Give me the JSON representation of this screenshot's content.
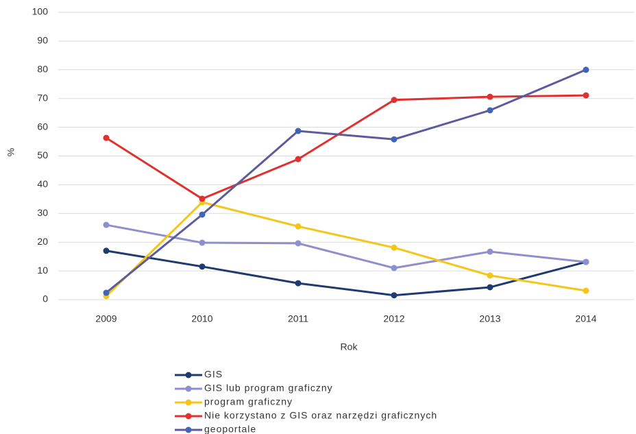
{
  "chart_data": {
    "type": "line",
    "x_label": "Rok",
    "y_label": "%",
    "categories": [
      "2009",
      "2010",
      "2011",
      "2012",
      "2013",
      "2014"
    ],
    "ylim": [
      0,
      100
    ],
    "yticks": [
      0,
      10,
      20,
      30,
      40,
      50,
      60,
      70,
      80,
      90,
      100
    ],
    "grid": true,
    "legend": "bottom",
    "series": [
      {
        "name": "GIS",
        "color": "#1f3a6e",
        "values": [
          17,
          11.5,
          5.7,
          1.5,
          4.3,
          13.1
        ]
      },
      {
        "name": "GIS lub program graficzny",
        "color": "#8e8fcf",
        "values": [
          26,
          19.8,
          19.6,
          11,
          16.7,
          13.1
        ]
      },
      {
        "name": "program graficzny",
        "color": "#f5c518",
        "values": [
          1.2,
          33.9,
          25.5,
          18.1,
          8.4,
          3.1
        ]
      },
      {
        "name": "Nie korzystano z GIS oraz narzędzi graficznych",
        "color": "#e03030",
        "values": [
          56.3,
          35.1,
          48.9,
          69.5,
          70.6,
          71.1
        ]
      },
      {
        "name": "geoportale",
        "color": "#5b5b9e",
        "marker_color": "#3e66b5",
        "values": [
          2.4,
          29.6,
          58.7,
          55.8,
          65.9,
          80
        ]
      }
    ]
  }
}
